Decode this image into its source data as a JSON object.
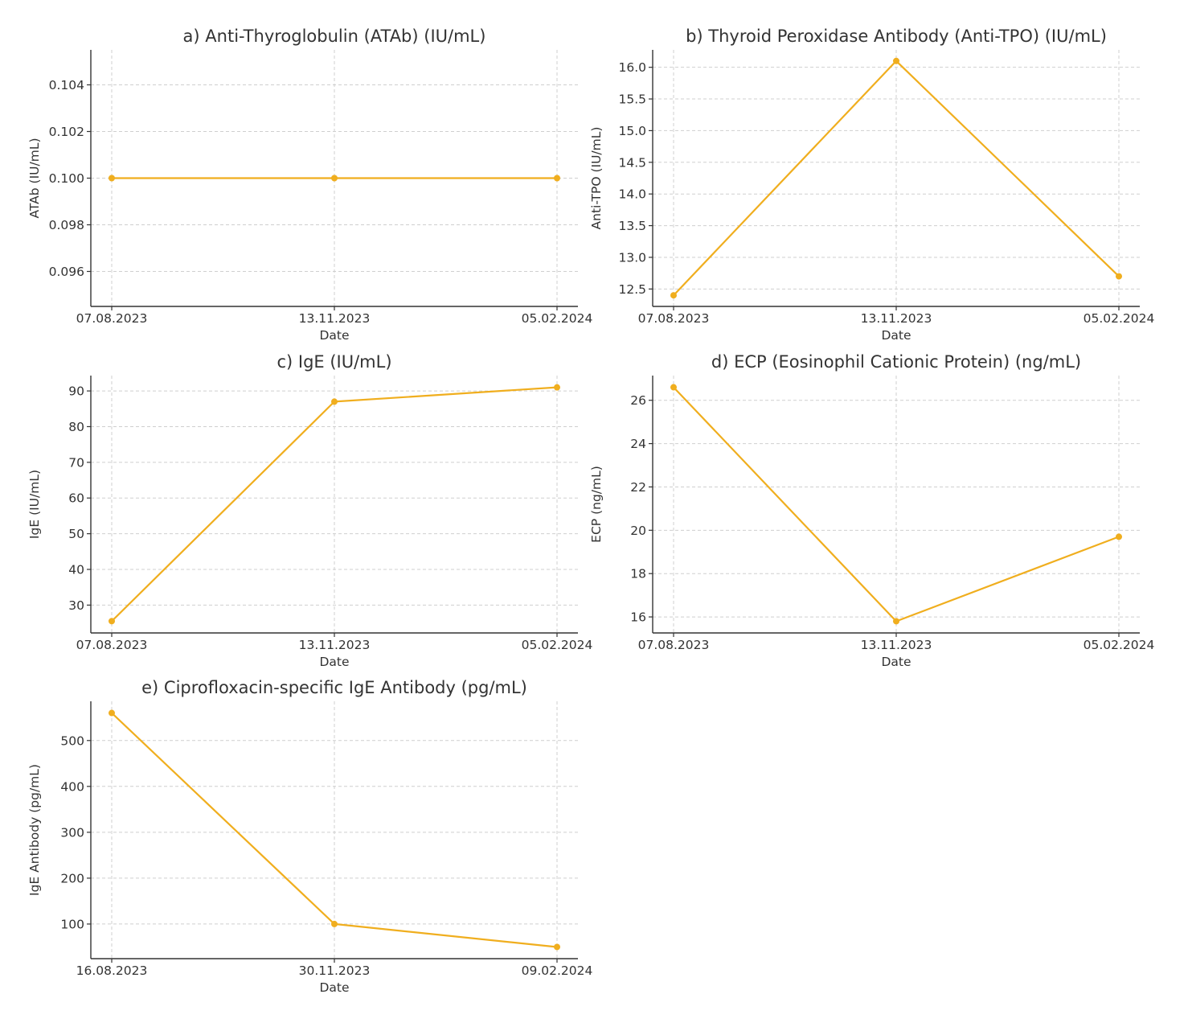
{
  "figure": {
    "background": "#ffffff",
    "line_color": "#f0ae1e"
  },
  "chart_data": [
    {
      "type": "line",
      "title": "a) Anti-Thyroglobulin (ATAb) (IU/mL)",
      "xlabel": "Date",
      "ylabel": "ATAb (IU/mL)",
      "categories": [
        "07.08.2023",
        "13.11.2023",
        "05.02.2024"
      ],
      "values": [
        0.1,
        0.1,
        0.1
      ],
      "ylim": [
        0.0945,
        0.1055
      ],
      "yticks": [
        0.096,
        0.098,
        0.1,
        0.102,
        0.104
      ],
      "ytick_labels": [
        "0.096",
        "0.098",
        "0.100",
        "0.102",
        "0.104"
      ],
      "grid": true,
      "color": "#f0ae1e"
    },
    {
      "type": "line",
      "title": "b) Thyroid Peroxidase Antibody (Anti-TPO) (IU/mL)",
      "xlabel": "Date",
      "ylabel": "Anti-TPO (IU/mL)",
      "categories": [
        "07.08.2023",
        "13.11.2023",
        "05.02.2024"
      ],
      "values": [
        12.4,
        16.1,
        12.7
      ],
      "ylim": [
        12.225,
        16.275
      ],
      "yticks": [
        12.5,
        13.0,
        13.5,
        14.0,
        14.5,
        15.0,
        15.5,
        16.0
      ],
      "ytick_labels": [
        "12.5",
        "13.0",
        "13.5",
        "14.0",
        "14.5",
        "15.0",
        "15.5",
        "16.0"
      ],
      "grid": true,
      "color": "#f0ae1e"
    },
    {
      "type": "line",
      "title": "c) IgE (IU/mL)",
      "xlabel": "Date",
      "ylabel": "IgE (IU/mL)",
      "categories": [
        "07.08.2023",
        "13.11.2023",
        "05.02.2024"
      ],
      "values": [
        25.5,
        87,
        91
      ],
      "ylim": [
        22.2,
        94.3
      ],
      "yticks": [
        30,
        40,
        50,
        60,
        70,
        80,
        90
      ],
      "ytick_labels": [
        "30",
        "40",
        "50",
        "60",
        "70",
        "80",
        "90"
      ],
      "grid": true,
      "color": "#f0ae1e"
    },
    {
      "type": "line",
      "title": "d) ECP (Eosinophil Cationic Protein) (ng/mL)",
      "xlabel": "Date",
      "ylabel": "ECP (ng/mL)",
      "categories": [
        "07.08.2023",
        "13.11.2023",
        "05.02.2024"
      ],
      "values": [
        26.6,
        15.8,
        19.7
      ],
      "ylim": [
        15.26,
        27.14
      ],
      "yticks": [
        16,
        18,
        20,
        22,
        24,
        26
      ],
      "ytick_labels": [
        "16",
        "18",
        "20",
        "22",
        "24",
        "26"
      ],
      "grid": true,
      "color": "#f0ae1e"
    },
    {
      "type": "line",
      "title": "e) Ciprofloxacin-specific IgE Antibody (pg/mL)",
      "xlabel": "Date",
      "ylabel": "IgE Antibody (pg/mL)",
      "categories": [
        "16.08.2023",
        "30.11.2023",
        "09.02.2024"
      ],
      "values": [
        560,
        100,
        50
      ],
      "ylim": [
        24.5,
        585.5
      ],
      "yticks": [
        100,
        200,
        300,
        400,
        500
      ],
      "ytick_labels": [
        "100",
        "200",
        "300",
        "400",
        "500"
      ],
      "grid": true,
      "color": "#f0ae1e"
    }
  ]
}
